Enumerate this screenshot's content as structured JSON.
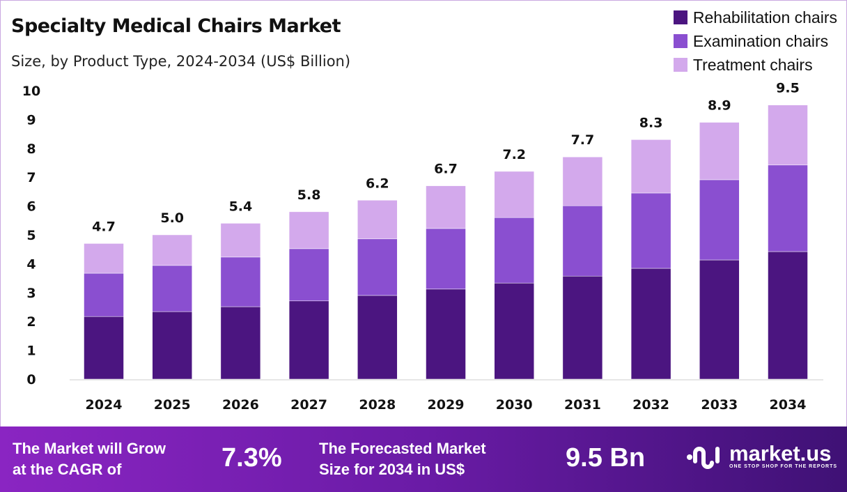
{
  "chart_data": {
    "type": "bar",
    "stacked": true,
    "title": "Specialty Medical Chairs Market",
    "subtitle": "Size, by Product Type, 2024-2034 (US$ Billion)",
    "categories": [
      "2024",
      "2025",
      "2026",
      "2027",
      "2028",
      "2029",
      "2030",
      "2031",
      "2032",
      "2033",
      "2034"
    ],
    "series": [
      {
        "name": "Rehabilitation chairs",
        "color": "#4b1580",
        "values": [
          2.17,
          2.34,
          2.51,
          2.71,
          2.9,
          3.12,
          3.33,
          3.57,
          3.84,
          4.13,
          4.42
        ]
      },
      {
        "name": "Examination chairs",
        "color": "#8a4fd0",
        "values": [
          1.5,
          1.6,
          1.72,
          1.81,
          1.96,
          2.1,
          2.27,
          2.44,
          2.61,
          2.78,
          3.0
        ]
      },
      {
        "name": "Treatment chairs",
        "color": "#d3a9ec",
        "values": [
          1.03,
          1.06,
          1.17,
          1.28,
          1.34,
          1.48,
          1.6,
          1.69,
          1.85,
          1.99,
          2.08
        ]
      }
    ],
    "totals": [
      "4.7",
      "5.0",
      "5.4",
      "5.8",
      "6.2",
      "6.7",
      "7.2",
      "7.7",
      "8.3",
      "8.9",
      "9.5"
    ],
    "yticks": [
      "0",
      "1",
      "2",
      "3",
      "4",
      "5",
      "6",
      "7",
      "8",
      "9",
      "10"
    ],
    "ylim": [
      0,
      10
    ],
    "grid": false,
    "legend": "top-right"
  },
  "footer": {
    "cagr_label_1": "The Market will Grow",
    "cagr_label_2": "at the CAGR of",
    "cagr_value": "7.3%",
    "forecast_label_1": "The Forecasted Market",
    "forecast_label_2": "Size for 2034 in US$",
    "forecast_value": "9.5 Bn",
    "logo_name": "market.us",
    "logo_tagline": "ONE STOP SHOP FOR THE REPORTS"
  }
}
